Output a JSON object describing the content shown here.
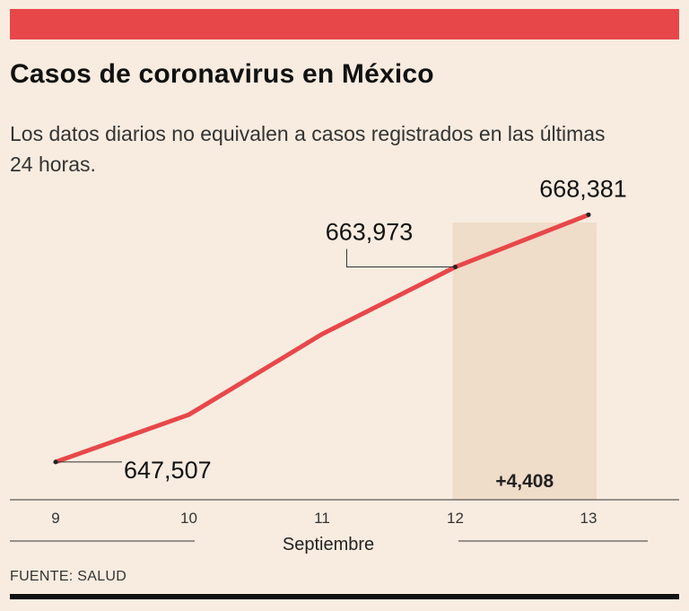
{
  "header": {
    "title": "Casos de coronavirus en México",
    "subtitle": "Los datos diarios no equivalen a casos registrados en las últimas 24 horas."
  },
  "footer": {
    "source": "FUENTE: SALUD"
  },
  "colors": {
    "accent": "#e8474a",
    "background": "#f8ece0",
    "highlight": "#efdcc9",
    "text": "#111111"
  },
  "chart_data": {
    "type": "line",
    "title": "Casos de coronavirus en México",
    "xlabel": "Septiembre",
    "ylabel": "",
    "x": [
      9,
      10,
      11,
      12,
      13
    ],
    "x_tick_labels": [
      "9",
      "10",
      "11",
      "12",
      "13"
    ],
    "series": [
      {
        "values": [
          647507,
          651500,
          658300,
          663973,
          668381
        ]
      }
    ],
    "labeled_points": [
      {
        "x": 9,
        "value": 647507,
        "label": "647,507"
      },
      {
        "x": 12,
        "value": 663973,
        "label": "663,973"
      },
      {
        "x": 13,
        "value": 668381,
        "label": "668,381"
      }
    ],
    "highlight": {
      "x_from": 12,
      "x_to": 13,
      "label": "+4,408"
    },
    "ylim": [
      645000,
      670000
    ],
    "grid": false,
    "legend": "none"
  }
}
